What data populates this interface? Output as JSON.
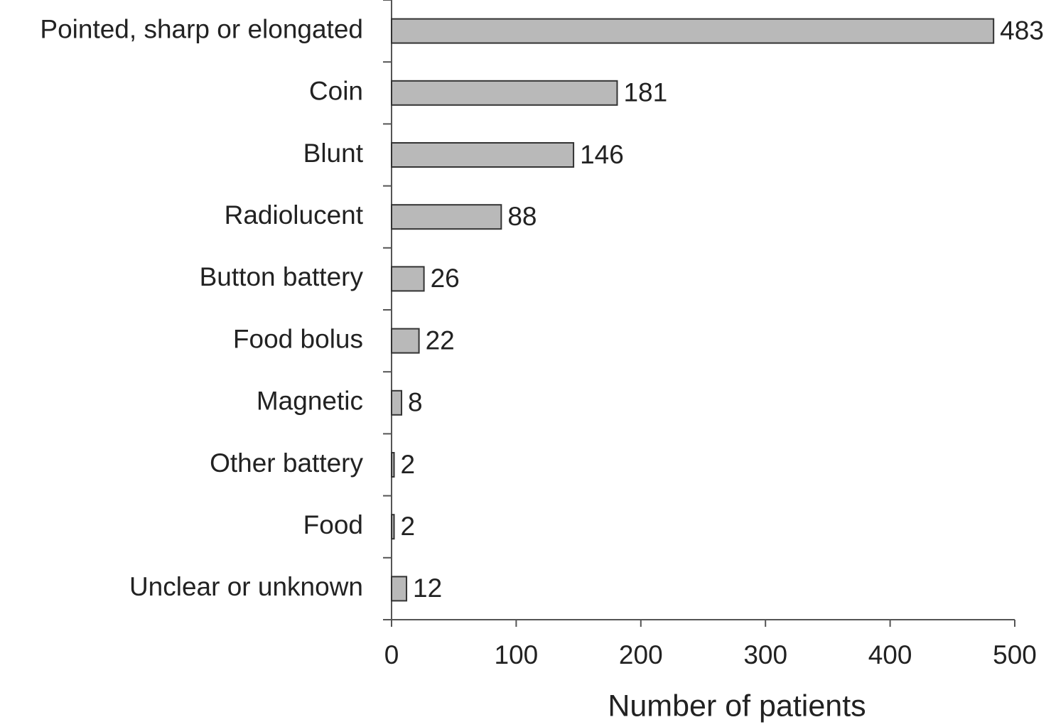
{
  "chart_data": {
    "type": "bar",
    "orientation": "horizontal",
    "categories": [
      "Pointed, sharp or elongated",
      "Coin",
      "Blunt",
      "Radiolucent",
      "Button battery",
      "Food bolus",
      "Magnetic",
      "Other battery",
      "Food",
      "Unclear or unknown"
    ],
    "values": [
      483,
      181,
      146,
      88,
      26,
      22,
      8,
      2,
      2,
      12
    ],
    "color": "#b9b9b9",
    "xlabel": "Number of patients",
    "xlim": [
      0,
      500
    ],
    "xticks": [
      0,
      100,
      200,
      300,
      400,
      500
    ],
    "grid": false
  }
}
